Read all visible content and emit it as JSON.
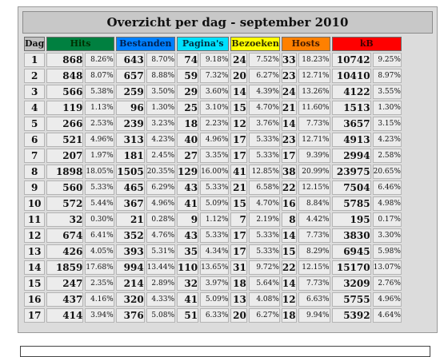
{
  "title": "Overzicht per dag - september 2010",
  "columns": [
    {
      "label": "Dag",
      "color": "#c0c0c0",
      "text": "#111111"
    },
    {
      "label": "Hits",
      "color": "#008040",
      "text": "#003000"
    },
    {
      "label": "Bestanden",
      "color": "#0080ff",
      "text": "#002050"
    },
    {
      "label": "Pagina's",
      "color": "#00e0ff",
      "text": "#003040"
    },
    {
      "label": "Bezoeken",
      "color": "#ffff00",
      "text": "#303000"
    },
    {
      "label": "Hosts",
      "color": "#ff8000",
      "text": "#401800"
    },
    {
      "label": "kB",
      "color": "#ff0000",
      "text": "#400000"
    }
  ],
  "rows": [
    [
      "1",
      "868",
      "8.26%",
      "643",
      "8.70%",
      "74",
      "9.18%",
      "24",
      "7.52%",
      "33",
      "18.23%",
      "10742",
      "9.25%"
    ],
    [
      "2",
      "848",
      "8.07%",
      "657",
      "8.88%",
      "59",
      "7.32%",
      "20",
      "6.27%",
      "23",
      "12.71%",
      "10410",
      "8.97%"
    ],
    [
      "3",
      "566",
      "5.38%",
      "259",
      "3.50%",
      "29",
      "3.60%",
      "14",
      "4.39%",
      "24",
      "13.26%",
      "4122",
      "3.55%"
    ],
    [
      "4",
      "119",
      "1.13%",
      "96",
      "1.30%",
      "25",
      "3.10%",
      "15",
      "4.70%",
      "21",
      "11.60%",
      "1513",
      "1.30%"
    ],
    [
      "5",
      "266",
      "2.53%",
      "239",
      "3.23%",
      "18",
      "2.23%",
      "12",
      "3.76%",
      "14",
      "7.73%",
      "3657",
      "3.15%"
    ],
    [
      "6",
      "521",
      "4.96%",
      "313",
      "4.23%",
      "40",
      "4.96%",
      "17",
      "5.33%",
      "23",
      "12.71%",
      "4913",
      "4.23%"
    ],
    [
      "7",
      "207",
      "1.97%",
      "181",
      "2.45%",
      "27",
      "3.35%",
      "17",
      "5.33%",
      "17",
      "9.39%",
      "2994",
      "2.58%"
    ],
    [
      "8",
      "1898",
      "18.05%",
      "1505",
      "20.35%",
      "129",
      "16.00%",
      "41",
      "12.85%",
      "38",
      "20.99%",
      "23975",
      "20.65%"
    ],
    [
      "9",
      "560",
      "5.33%",
      "465",
      "6.29%",
      "43",
      "5.33%",
      "21",
      "6.58%",
      "22",
      "12.15%",
      "7504",
      "6.46%"
    ],
    [
      "10",
      "572",
      "5.44%",
      "367",
      "4.96%",
      "41",
      "5.09%",
      "15",
      "4.70%",
      "16",
      "8.84%",
      "5785",
      "4.98%"
    ],
    [
      "11",
      "32",
      "0.30%",
      "21",
      "0.28%",
      "9",
      "1.12%",
      "7",
      "2.19%",
      "8",
      "4.42%",
      "195",
      "0.17%"
    ],
    [
      "12",
      "674",
      "6.41%",
      "352",
      "4.76%",
      "43",
      "5.33%",
      "17",
      "5.33%",
      "14",
      "7.73%",
      "3830",
      "3.30%"
    ],
    [
      "13",
      "426",
      "4.05%",
      "393",
      "5.31%",
      "35",
      "4.34%",
      "17",
      "5.33%",
      "15",
      "8.29%",
      "6945",
      "5.98%"
    ],
    [
      "14",
      "1859",
      "17.68%",
      "994",
      "13.44%",
      "110",
      "13.65%",
      "31",
      "9.72%",
      "22",
      "12.15%",
      "15170",
      "13.07%"
    ],
    [
      "15",
      "247",
      "2.35%",
      "214",
      "2.89%",
      "32",
      "3.97%",
      "18",
      "5.64%",
      "14",
      "7.73%",
      "3209",
      "2.76%"
    ],
    [
      "16",
      "437",
      "4.16%",
      "320",
      "4.33%",
      "41",
      "5.09%",
      "13",
      "4.08%",
      "12",
      "6.63%",
      "5755",
      "4.96%"
    ],
    [
      "17",
      "414",
      "3.94%",
      "376",
      "5.08%",
      "51",
      "6.33%",
      "20",
      "6.27%",
      "18",
      "9.94%",
      "5392",
      "4.64%"
    ]
  ]
}
